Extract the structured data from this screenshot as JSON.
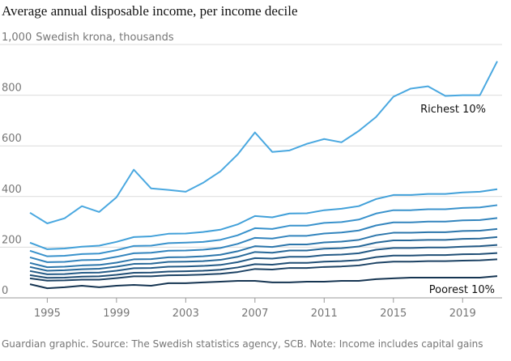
{
  "chart_data": {
    "type": "line",
    "title": "Average annual disposable income, per income decile",
    "y_label": "Swedish krona, thousands",
    "source": "Guardian graphic. Source: The Swedish statistics agency, SCB. Note: Income includes capital gains",
    "x": [
      1994,
      1995,
      1996,
      1997,
      1998,
      1999,
      2000,
      2001,
      2002,
      2003,
      2004,
      2005,
      2006,
      2007,
      2008,
      2009,
      2010,
      2011,
      2012,
      2013,
      2014,
      2015,
      2016,
      2017,
      2018,
      2019,
      2020,
      2021
    ],
    "xlim": [
      1994,
      2021
    ],
    "xticks": [
      1995,
      1999,
      2003,
      2007,
      2011,
      2015,
      2019
    ],
    "ylim": [
      0,
      1000
    ],
    "yticks": [
      0,
      200,
      400,
      600,
      800,
      {
        "value": 1000,
        "label": "1,000"
      }
    ],
    "grid": true,
    "series": [
      {
        "name": "Richest 10%",
        "color": "#4aa8e0",
        "values": [
          336,
          294,
          314,
          362,
          339,
          397,
          506,
          432,
          426,
          419,
          454,
          499,
          566,
          653,
          576,
          582,
          608,
          627,
          614,
          659,
          714,
          794,
          826,
          835,
          797,
          800,
          800,
          934
        ]
      },
      {
        "color": "#41a0d9",
        "values": [
          218,
          192,
          195,
          202,
          206,
          221,
          240,
          243,
          253,
          254,
          260,
          269,
          290,
          323,
          318,
          333,
          334,
          346,
          352,
          362,
          390,
          406,
          406,
          410,
          410,
          416,
          419,
          429
        ]
      },
      {
        "color": "#3992cc",
        "values": [
          186,
          164,
          166,
          173,
          175,
          188,
          205,
          206,
          216,
          218,
          221,
          229,
          247,
          275,
          272,
          285,
          285,
          296,
          299,
          309,
          333,
          346,
          346,
          350,
          350,
          355,
          357,
          366
        ]
      },
      {
        "color": "#3284bd",
        "values": [
          160,
          141,
          142,
          149,
          150,
          162,
          176,
          178,
          186,
          187,
          190,
          197,
          213,
          237,
          234,
          245,
          245,
          254,
          258,
          266,
          286,
          298,
          298,
          301,
          301,
          306,
          307,
          315
        ]
      },
      {
        "color": "#2c76ab",
        "values": [
          138,
          121,
          123,
          128,
          130,
          139,
          152,
          153,
          160,
          161,
          164,
          170,
          184,
          204,
          201,
          211,
          211,
          219,
          222,
          229,
          247,
          257,
          257,
          259,
          259,
          264,
          265,
          272
        ]
      },
      {
        "color": "#276898",
        "values": [
          122,
          107,
          109,
          113,
          115,
          123,
          134,
          135,
          142,
          143,
          145,
          150,
          162,
          181,
          178,
          187,
          187,
          194,
          196,
          203,
          218,
          227,
          227,
          229,
          229,
          233,
          234,
          240
        ]
      },
      {
        "color": "#235a86",
        "values": [
          106,
          93,
          94,
          99,
          100,
          107,
          117,
          118,
          123,
          124,
          126,
          130,
          141,
          157,
          155,
          162,
          162,
          169,
          171,
          176,
          190,
          197,
          197,
          199,
          199,
          202,
          204,
          209
        ]
      },
      {
        "color": "#1f4d74",
        "values": [
          90,
          79,
          80,
          84,
          85,
          91,
          99,
          100,
          104,
          105,
          107,
          111,
          120,
          133,
          131,
          138,
          138,
          143,
          145,
          149,
          161,
          167,
          167,
          169,
          169,
          172,
          173,
          177
        ]
      },
      {
        "color": "#1c4264",
        "values": [
          77,
          68,
          69,
          72,
          72,
          78,
          85,
          85,
          89,
          90,
          92,
          95,
          102,
          114,
          112,
          118,
          118,
          122,
          124,
          128,
          138,
          143,
          143,
          145,
          145,
          147,
          148,
          152
        ]
      },
      {
        "name": "Poorest 10%",
        "color": "#163552",
        "values": [
          54,
          38,
          42,
          48,
          42,
          48,
          51,
          48,
          58,
          58,
          61,
          64,
          67,
          67,
          61,
          61,
          64,
          64,
          67,
          67,
          74,
          77,
          80,
          80,
          80,
          80,
          80,
          86
        ]
      }
    ]
  }
}
